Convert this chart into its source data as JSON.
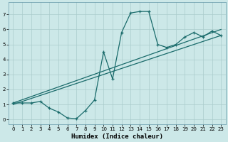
{
  "xlabel": "Humidex (Indice chaleur)",
  "bg_color": "#cce8e8",
  "grid_color": "#aacccc",
  "line_color": "#1a6b6b",
  "xlim": [
    -0.5,
    23.5
  ],
  "ylim": [
    -0.3,
    7.8
  ],
  "xticks": [
    0,
    1,
    2,
    3,
    4,
    5,
    6,
    7,
    8,
    9,
    10,
    11,
    12,
    13,
    14,
    15,
    16,
    17,
    18,
    19,
    20,
    21,
    22,
    23
  ],
  "yticks": [
    0,
    1,
    2,
    3,
    4,
    5,
    6,
    7
  ],
  "curve1_x": [
    0,
    1,
    2,
    3,
    4,
    5,
    6,
    7,
    8,
    9,
    10,
    11,
    12,
    13,
    14,
    15,
    16,
    17,
    18,
    19,
    20,
    21,
    22,
    23
  ],
  "curve1_y": [
    1.1,
    1.1,
    1.1,
    1.2,
    0.75,
    0.5,
    0.1,
    0.05,
    0.6,
    1.3,
    4.5,
    2.7,
    5.8,
    7.1,
    7.2,
    7.2,
    5.0,
    4.8,
    5.0,
    5.5,
    5.8,
    5.5,
    5.9,
    5.6
  ],
  "line1_x": [
    0,
    23
  ],
  "line1_y": [
    1.1,
    6.0
  ],
  "line2_x": [
    0,
    23
  ],
  "line2_y": [
    1.0,
    5.6
  ]
}
